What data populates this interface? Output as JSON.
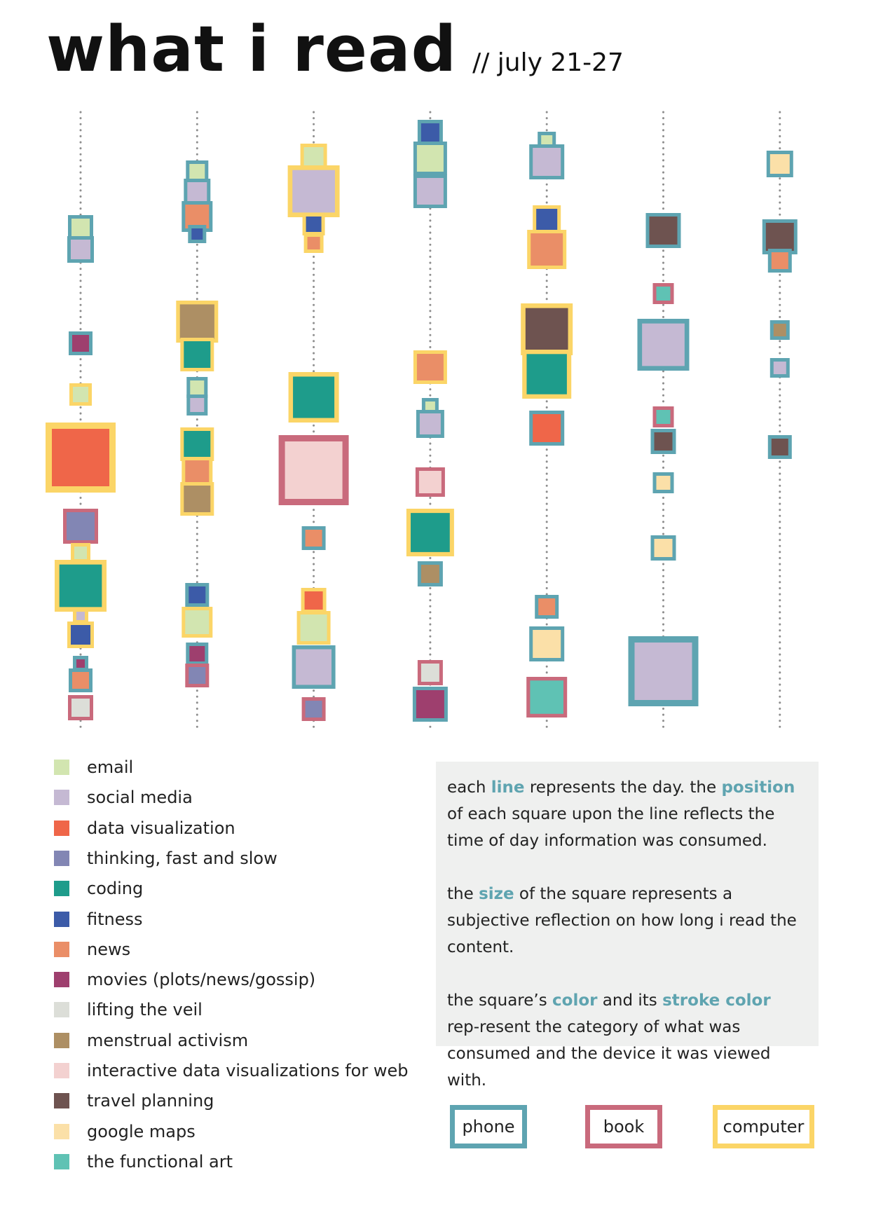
{
  "header": {
    "title": "what i read",
    "subtitle": "// july 21-27"
  },
  "devices": [
    {
      "key": "phone",
      "label": "phone",
      "color": "#5ea4b1"
    },
    {
      "key": "book",
      "label": "book",
      "color": "#c96a7c"
    },
    {
      "key": "computer",
      "label": "computer",
      "color": "#fbd567"
    }
  ],
  "categories": [
    {
      "key": "email",
      "label": "email",
      "color": "#d2e5b0"
    },
    {
      "key": "social",
      "label": "social media",
      "color": "#c5b9d3"
    },
    {
      "key": "dataviz",
      "label": "data visualization",
      "color": "#ef6649"
    },
    {
      "key": "thinking",
      "label": "thinking, fast and slow",
      "color": "#8286b4"
    },
    {
      "key": "coding",
      "label": "coding",
      "color": "#1e9c8b"
    },
    {
      "key": "fitness",
      "label": "fitness",
      "color": "#3c5ba8"
    },
    {
      "key": "news",
      "label": "news",
      "color": "#ea8e67"
    },
    {
      "key": "movies",
      "label": "movies (plots/news/gossip)",
      "color": "#9e3f6e"
    },
    {
      "key": "veil",
      "label": "lifting the veil",
      "color": "#dcded8"
    },
    {
      "key": "menstrual",
      "label": "menstrual activism",
      "color": "#ad8f64"
    },
    {
      "key": "interactive",
      "label": "interactive data visualizations for web",
      "color": "#f3d1d0"
    },
    {
      "key": "travel",
      "label": "travel planning",
      "color": "#6e5350"
    },
    {
      "key": "maps",
      "label": "google maps",
      "color": "#fbe0a8"
    },
    {
      "key": "functional",
      "label": "the functional art",
      "color": "#5fc2b4"
    }
  ],
  "explanation": {
    "p1": {
      "a": "each ",
      "h1": "line",
      "b": " represents the day. the ",
      "h2": "position",
      "c": " of each square upon the line reflects the time of day information was consumed."
    },
    "p2": {
      "a": "the ",
      "h1": "size",
      "b": " of the square represents a subjective reflection on how long i read the content."
    },
    "p3": {
      "a": "the square’s ",
      "h1": "color",
      "b": " and its ",
      "h2": "stroke color",
      "c": " rep-resent the category of what was consumed and the device it was viewed with."
    }
  },
  "chart_data": {
    "type": "scatter",
    "encoding": {
      "x": "day",
      "y": "time of day",
      "size": "subjective reading duration",
      "fill": "category",
      "stroke": "device"
    },
    "days": [
      {
        "day": 1,
        "items": [
          {
            "y": 325,
            "size": 36,
            "category": "email",
            "device": "phone"
          },
          {
            "y": 356,
            "size": 38,
            "category": "social",
            "device": "phone"
          },
          {
            "y": 490,
            "size": 34,
            "category": "movies",
            "device": "phone"
          },
          {
            "y": 563,
            "size": 32,
            "category": "email",
            "device": "computer"
          },
          {
            "y": 653,
            "size": 100,
            "category": "dataviz",
            "device": "computer"
          },
          {
            "y": 751,
            "size": 50,
            "category": "thinking",
            "device": "book"
          },
          {
            "y": 789,
            "size": 28,
            "category": "email",
            "device": "computer"
          },
          {
            "y": 836,
            "size": 74,
            "category": "coding",
            "device": "computer"
          },
          {
            "y": 879,
            "size": 22,
            "category": "social",
            "device": "computer"
          },
          {
            "y": 906,
            "size": 38,
            "category": "fitness",
            "device": "computer"
          },
          {
            "y": 947,
            "size": 22,
            "category": "movies",
            "device": "phone"
          },
          {
            "y": 971,
            "size": 34,
            "category": "news",
            "device": "phone"
          },
          {
            "y": 1010,
            "size": 36,
            "category": "veil",
            "device": "book"
          }
        ]
      },
      {
        "day": 2,
        "items": [
          {
            "y": 245,
            "size": 32,
            "category": "email",
            "device": "phone"
          },
          {
            "y": 274,
            "size": 38,
            "category": "social",
            "device": "phone"
          },
          {
            "y": 309,
            "size": 44,
            "category": "news",
            "device": "phone"
          },
          {
            "y": 334,
            "size": 26,
            "category": "fitness",
            "device": "phone"
          },
          {
            "y": 459,
            "size": 60,
            "category": "menstrual",
            "device": "computer"
          },
          {
            "y": 506,
            "size": 48,
            "category": "coding",
            "device": "computer"
          },
          {
            "y": 553,
            "size": 30,
            "category": "email",
            "device": "phone"
          },
          {
            "y": 578,
            "size": 30,
            "category": "social",
            "device": "phone"
          },
          {
            "y": 634,
            "size": 48,
            "category": "coding",
            "device": "computer"
          },
          {
            "y": 674,
            "size": 44,
            "category": "news",
            "device": "computer"
          },
          {
            "y": 712,
            "size": 48,
            "category": "menstrual",
            "device": "computer"
          },
          {
            "y": 849,
            "size": 34,
            "category": "fitness",
            "device": "phone"
          },
          {
            "y": 888,
            "size": 44,
            "category": "email",
            "device": "computer"
          },
          {
            "y": 933,
            "size": 32,
            "category": "movies",
            "device": "phone"
          },
          {
            "y": 964,
            "size": 34,
            "category": "thinking",
            "device": "book"
          }
        ]
      },
      {
        "day": 3,
        "items": [
          {
            "y": 224,
            "size": 38,
            "category": "email",
            "device": "computer"
          },
          {
            "y": 273,
            "size": 74,
            "category": "social",
            "device": "computer"
          },
          {
            "y": 320,
            "size": 32,
            "category": "fitness",
            "device": "computer"
          },
          {
            "y": 347,
            "size": 28,
            "category": "news",
            "device": "computer"
          },
          {
            "y": 567,
            "size": 72,
            "category": "coding",
            "device": "computer"
          },
          {
            "y": 671,
            "size": 100,
            "category": "interactive",
            "device": "book"
          },
          {
            "y": 768,
            "size": 34,
            "category": "news",
            "device": "phone"
          },
          {
            "y": 857,
            "size": 36,
            "category": "dataviz",
            "device": "computer"
          },
          {
            "y": 896,
            "size": 48,
            "category": "email",
            "device": "computer"
          },
          {
            "y": 952,
            "size": 62,
            "category": "social",
            "device": "phone"
          },
          {
            "y": 1012,
            "size": 34,
            "category": "thinking",
            "device": "book"
          }
        ]
      },
      {
        "day": 4,
        "items": [
          {
            "y": 189,
            "size": 36,
            "category": "fitness",
            "device": "phone"
          },
          {
            "y": 226,
            "size": 48,
            "category": "email",
            "device": "phone"
          },
          {
            "y": 273,
            "size": 48,
            "category": "social",
            "device": "phone"
          },
          {
            "y": 524,
            "size": 48,
            "category": "news",
            "device": "computer"
          },
          {
            "y": 580,
            "size": 24,
            "category": "email",
            "device": "phone"
          },
          {
            "y": 605,
            "size": 40,
            "category": "social",
            "device": "phone"
          },
          {
            "y": 688,
            "size": 42,
            "category": "interactive",
            "device": "book"
          },
          {
            "y": 760,
            "size": 68,
            "category": "coding",
            "device": "computer"
          },
          {
            "y": 819,
            "size": 36,
            "category": "menstrual",
            "device": "phone"
          },
          {
            "y": 960,
            "size": 36,
            "category": "veil",
            "device": "book"
          },
          {
            "y": 1005,
            "size": 50,
            "category": "movies",
            "device": "phone"
          }
        ]
      },
      {
        "day": 5,
        "items": [
          {
            "y": 201,
            "size": 26,
            "category": "email",
            "device": "phone"
          },
          {
            "y": 231,
            "size": 50,
            "category": "social",
            "device": "phone"
          },
          {
            "y": 313,
            "size": 40,
            "category": "fitness",
            "device": "computer"
          },
          {
            "y": 356,
            "size": 56,
            "category": "news",
            "device": "computer"
          },
          {
            "y": 470,
            "size": 74,
            "category": "travel",
            "device": "computer"
          },
          {
            "y": 534,
            "size": 70,
            "category": "coding",
            "device": "computer"
          },
          {
            "y": 611,
            "size": 50,
            "category": "dataviz",
            "device": "phone"
          },
          {
            "y": 866,
            "size": 34,
            "category": "news",
            "device": "phone"
          },
          {
            "y": 919,
            "size": 50,
            "category": "maps",
            "device": "phone"
          },
          {
            "y": 995,
            "size": 58,
            "category": "functional",
            "device": "book"
          }
        ]
      },
      {
        "day": 6,
        "items": [
          {
            "y": 329,
            "size": 50,
            "category": "travel",
            "device": "phone"
          },
          {
            "y": 419,
            "size": 30,
            "category": "functional",
            "device": "book"
          },
          {
            "y": 492,
            "size": 74,
            "category": "social",
            "device": "phone"
          },
          {
            "y": 595,
            "size": 30,
            "category": "functional",
            "device": "book"
          },
          {
            "y": 630,
            "size": 36,
            "category": "travel",
            "device": "phone"
          },
          {
            "y": 689,
            "size": 30,
            "category": "maps",
            "device": "phone"
          },
          {
            "y": 782,
            "size": 36,
            "category": "maps",
            "device": "phone"
          },
          {
            "y": 958,
            "size": 100,
            "category": "social",
            "device": "phone"
          }
        ]
      },
      {
        "day": 7,
        "items": [
          {
            "y": 234,
            "size": 38,
            "category": "maps",
            "device": "phone"
          },
          {
            "y": 338,
            "size": 50,
            "category": "travel",
            "device": "phone"
          },
          {
            "y": 372,
            "size": 34,
            "category": "news",
            "device": "phone"
          },
          {
            "y": 471,
            "size": 28,
            "category": "menstrual",
            "device": "phone"
          },
          {
            "y": 525,
            "size": 28,
            "category": "social",
            "device": "phone"
          },
          {
            "y": 638,
            "size": 34,
            "category": "travel",
            "device": "phone"
          }
        ]
      }
    ]
  }
}
